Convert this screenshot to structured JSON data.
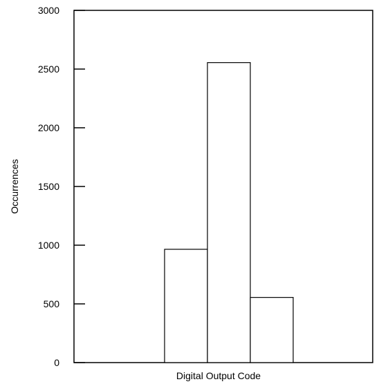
{
  "chart_data": {
    "type": "bar",
    "title": "",
    "xlabel": "Digital Output Code",
    "ylabel": "Occurrences",
    "ylim": [
      0,
      3000
    ],
    "yticks": [
      "0",
      "500",
      "1000",
      "1500",
      "2000",
      "2500",
      "3000"
    ],
    "categories": [
      "",
      "",
      ""
    ],
    "values": [
      965,
      2555,
      555
    ],
    "grid": false,
    "legend": "none",
    "bar_fill": "#ffffff",
    "bar_stroke": "#000000"
  }
}
